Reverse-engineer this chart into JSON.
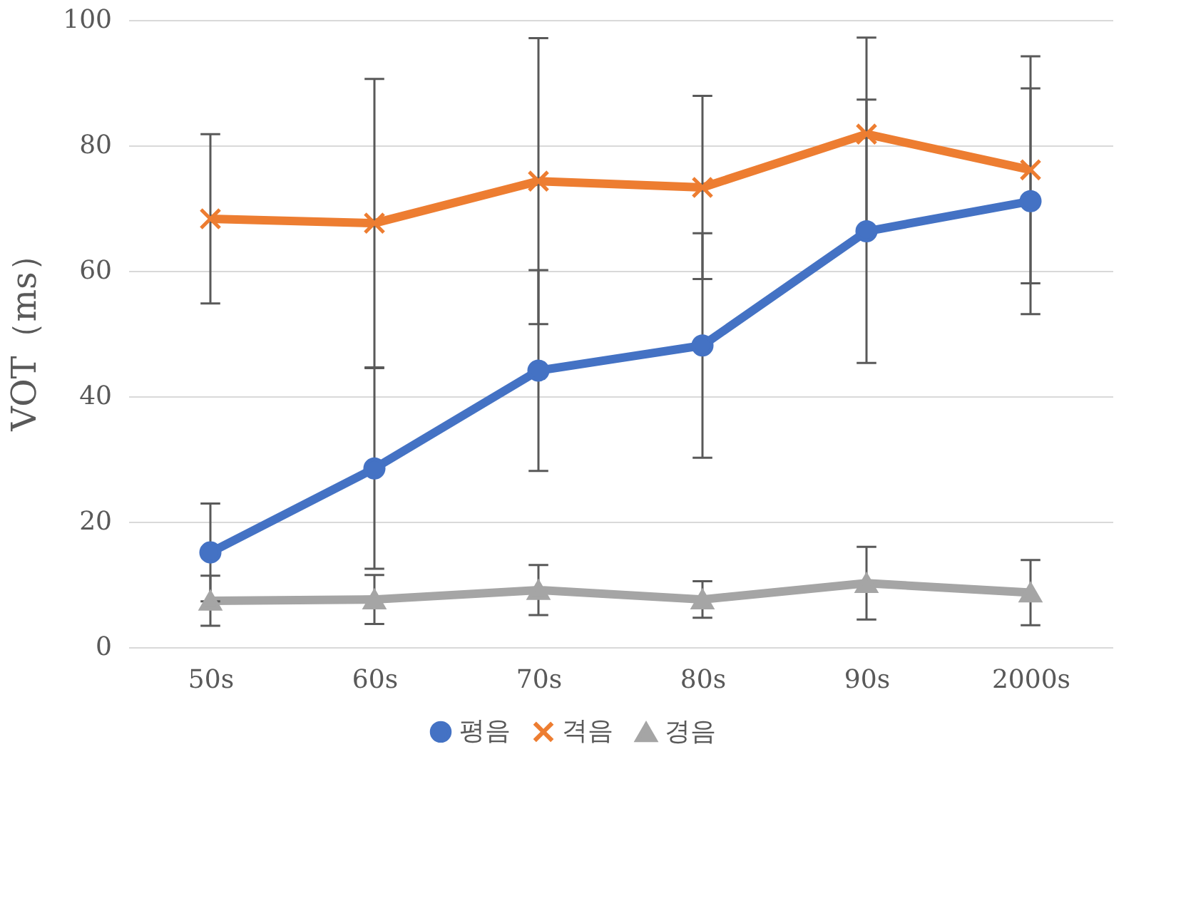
{
  "chart_data": {
    "type": "line",
    "ylabel": "VOT（ms）",
    "categories": [
      "50s",
      "60s",
      "70s",
      "80s",
      "90s",
      "2000s"
    ],
    "series": [
      {
        "name": "평음",
        "color": "#4472c4",
        "marker": "circle",
        "values": [
          15.1,
          28.5,
          44.1,
          48.1,
          66.3,
          71.1
        ],
        "errors": [
          7.8,
          16,
          16,
          17.9,
          21,
          18
        ]
      },
      {
        "name": "격음",
        "color": "#ed7d31",
        "marker": "cross",
        "values": [
          68.3,
          67.6,
          74.3,
          73.3,
          81.8,
          76.1
        ],
        "errors": [
          13.5,
          23,
          22.8,
          14.6,
          15.4,
          18.1
        ]
      },
      {
        "name": "경음",
        "color": "#a5a5a5",
        "marker": "triangle",
        "values": [
          7.4,
          7.6,
          9.1,
          7.6,
          10.2,
          8.7
        ],
        "errors": [
          4,
          3.9,
          4,
          2.9,
          5.8,
          5.2
        ]
      }
    ],
    "ylim": [
      0,
      100
    ],
    "yticks": [
      0,
      20,
      40,
      60,
      80,
      100
    ],
    "grid": "y",
    "legend": "bottom",
    "line_style": "solid"
  }
}
